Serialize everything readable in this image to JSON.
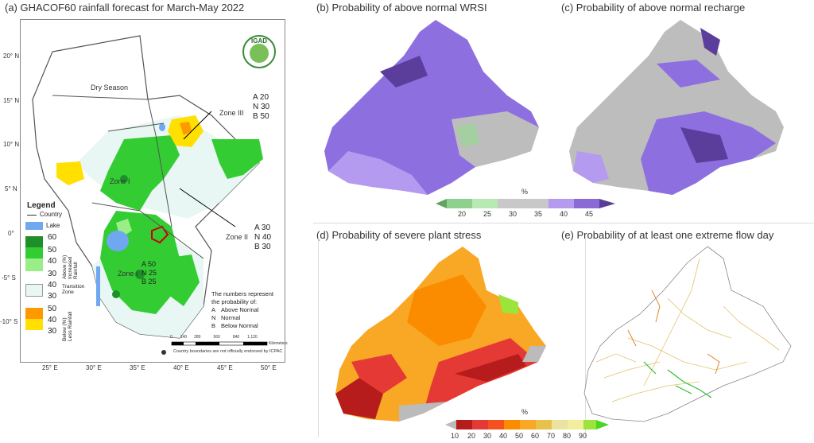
{
  "panels": {
    "a": {
      "title": "(a) GHACOF60 rainfall forecast for March-May 2022"
    },
    "b": {
      "title": "(b) Probability of above normal WRSI"
    },
    "c": {
      "title": "(c) Probability of above normal recharge"
    },
    "d": {
      "title": "(d) Probability of severe plant stress"
    },
    "e": {
      "title": "(e) Probability of at least one extreme flow day"
    }
  },
  "map_a": {
    "lat_labels": [
      "20° N",
      "15° N",
      "10° N",
      "5° N",
      "0°",
      "-5° S",
      "-10° S"
    ],
    "lon_labels": [
      "25° E",
      "30° E",
      "35° E",
      "40° E",
      "45° E",
      "50° E"
    ],
    "logo_text": "IGAD",
    "dry_season": "Dry Season",
    "zone1": "Zone I",
    "zone2": "Zone II",
    "zone3": "Zone III",
    "zone3_probs": [
      "A 20",
      "N 30",
      "B 50"
    ],
    "zone2_probs": [
      "A 30",
      "N 40",
      "B 30"
    ],
    "zone1_probs": [
      "A 50",
      "N 25",
      "B 25"
    ],
    "legend": {
      "title": "Legend",
      "country": "Country",
      "lake": "Lake",
      "above_label": "Above (%)\nIncreased Rainfall",
      "transition_label": "Transition\nZone",
      "below_label": "Below (%)\nLess Rainfall",
      "nums": [
        "60",
        "50",
        "40",
        "30",
        "40",
        "30",
        "50",
        "40",
        "30"
      ]
    },
    "note_title": "The numbers represent\nthe probability of:",
    "note_items": [
      {
        "key": "A",
        "text": "Above Normal"
      },
      {
        "key": "N",
        "text": "Normal"
      },
      {
        "key": "B",
        "text": "Below Normal"
      }
    ],
    "scale_labels": [
      "0",
      "140",
      "280",
      "560",
      "840",
      "1,120"
    ],
    "scale_unit": "Kilometers",
    "disclaimer": "Country boundaries are not officially endorsed by ICPAC"
  },
  "colorbar_top": {
    "unit": "%",
    "ticks": [
      "20",
      "25",
      "30",
      "35",
      "40",
      "45"
    ],
    "colors": [
      "#5fa55f",
      "#8fd08f",
      "#b9e9b3",
      "#c8c8c8",
      "#b59bf0",
      "#8a6bd6",
      "#5a3d99"
    ]
  },
  "colorbar_bottom": {
    "unit": "%",
    "ticks": [
      "10",
      "20",
      "30",
      "40",
      "50",
      "60",
      "70",
      "80",
      "90"
    ],
    "colors": [
      "#bbbbbb",
      "#b71c1c",
      "#e53935",
      "#f4511e",
      "#fb8c00",
      "#f9a825",
      "#e6c24a",
      "#ede3a0",
      "#f3ee9d",
      "#9be53a",
      "#4cd71f"
    ]
  },
  "colors": {
    "green_dark": "#1f8f2a",
    "green": "#33cc33",
    "green_light": "#99ee88",
    "transition": "#e8f7f4",
    "orange": "#ff9900",
    "yellow": "#ffe000",
    "lake": "#6fa8f0",
    "purple_dark": "#5b3d9c",
    "purple": "#8e6fe0",
    "grey": "#bdbdbd"
  }
}
